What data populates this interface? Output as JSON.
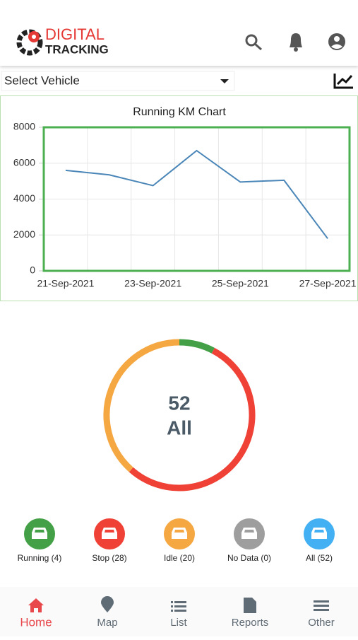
{
  "header": {
    "brand_top": "DIGITAL",
    "brand_bottom": "TRACKING"
  },
  "vehicle_select": "Select Vehicle",
  "chart_data": [
    {
      "type": "line",
      "title": "Running KM Chart",
      "categories": [
        "21-Sep-2021",
        null,
        "23-Sep-2021",
        null,
        "25-Sep-2021",
        null,
        "27-Sep-2021"
      ],
      "series": [
        {
          "color": "#4a86b8",
          "values": [
            5600,
            5350,
            4750,
            6700,
            4950,
            5050,
            1800
          ]
        }
      ],
      "ylim": [
        0,
        8000
      ],
      "yticks": [
        0,
        2000,
        4000,
        6000,
        8000
      ],
      "grid": true
    },
    {
      "type": "donut",
      "values": [
        4,
        28,
        20,
        0
      ],
      "colors": [
        "#43a047",
        "#ef4136",
        "#f5a742",
        "#9e9e9e"
      ],
      "center_value": 52,
      "center_label": "All"
    }
  ],
  "status_buttons": [
    {
      "label": "Running (4)",
      "color": "#43a047"
    },
    {
      "label": "Stop (28)",
      "color": "#ef4136"
    },
    {
      "label": "Idle (20)",
      "color": "#f5a742"
    },
    {
      "label": "No Data (0)",
      "color": "#9e9e9e"
    },
    {
      "label": "All (52)",
      "color": "#42b0f2"
    }
  ],
  "nav": [
    "Home",
    "Map",
    "List",
    "Reports",
    "Other"
  ]
}
